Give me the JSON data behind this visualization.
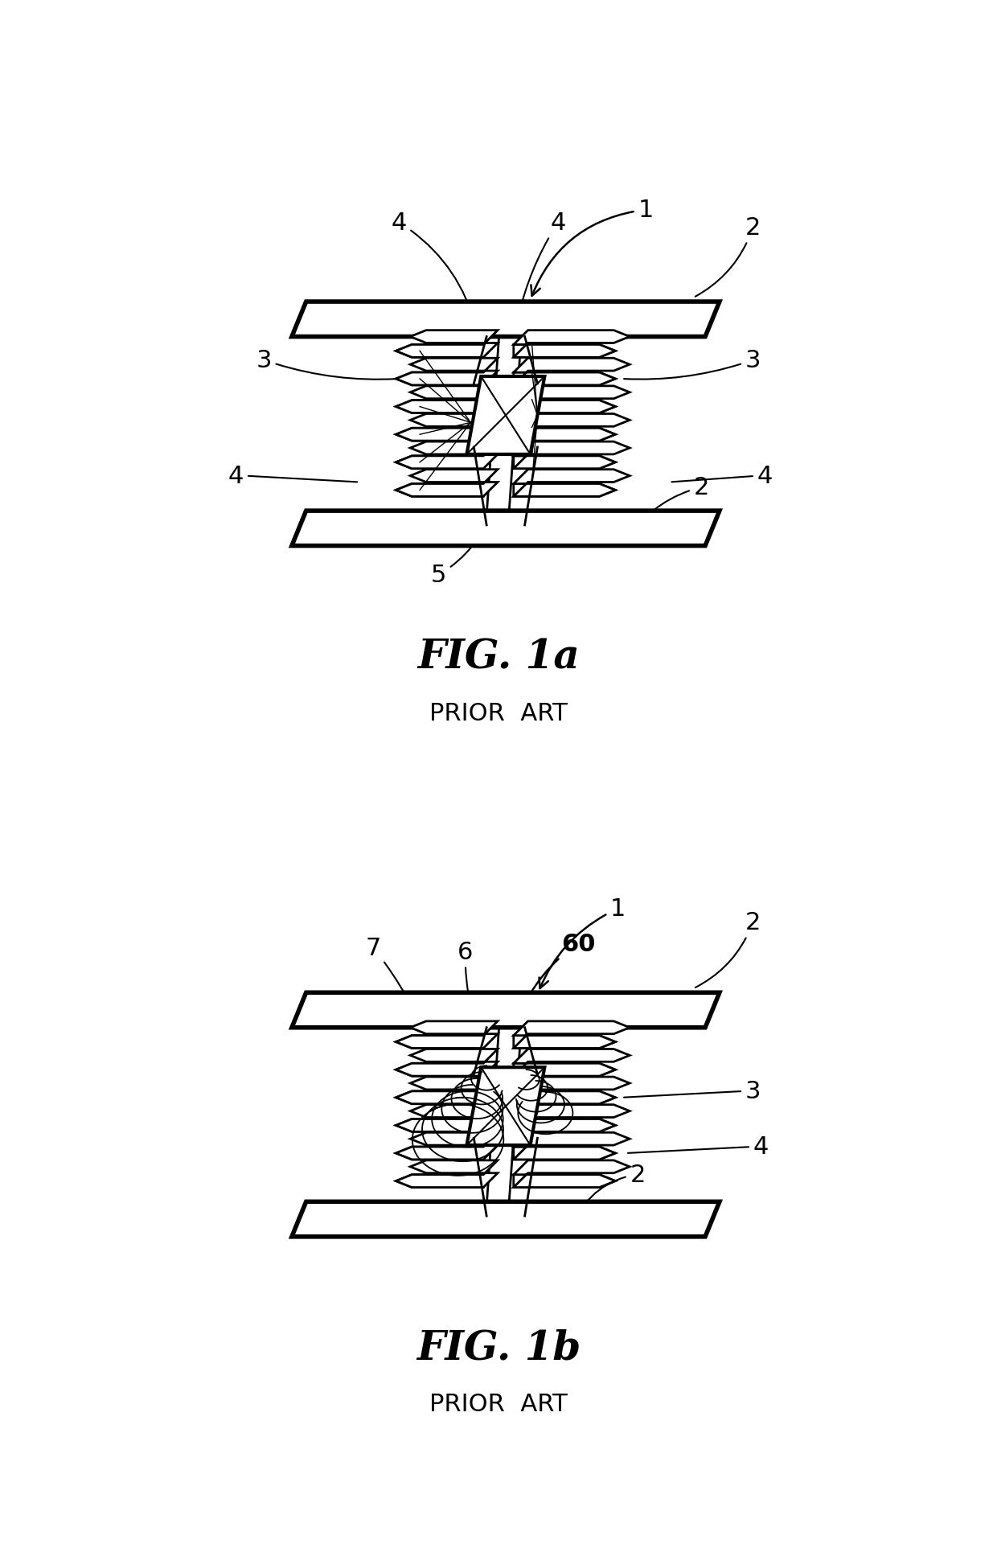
{
  "background_color": "#ffffff",
  "fig1a_title": "FIG. 1a",
  "fig1b_title": "FIG. 1b",
  "subtitle": "PRIOR  ART",
  "title_fontsize": 36,
  "subtitle_fontsize": 22,
  "label_fontsize": 22,
  "line_color": "#000000"
}
